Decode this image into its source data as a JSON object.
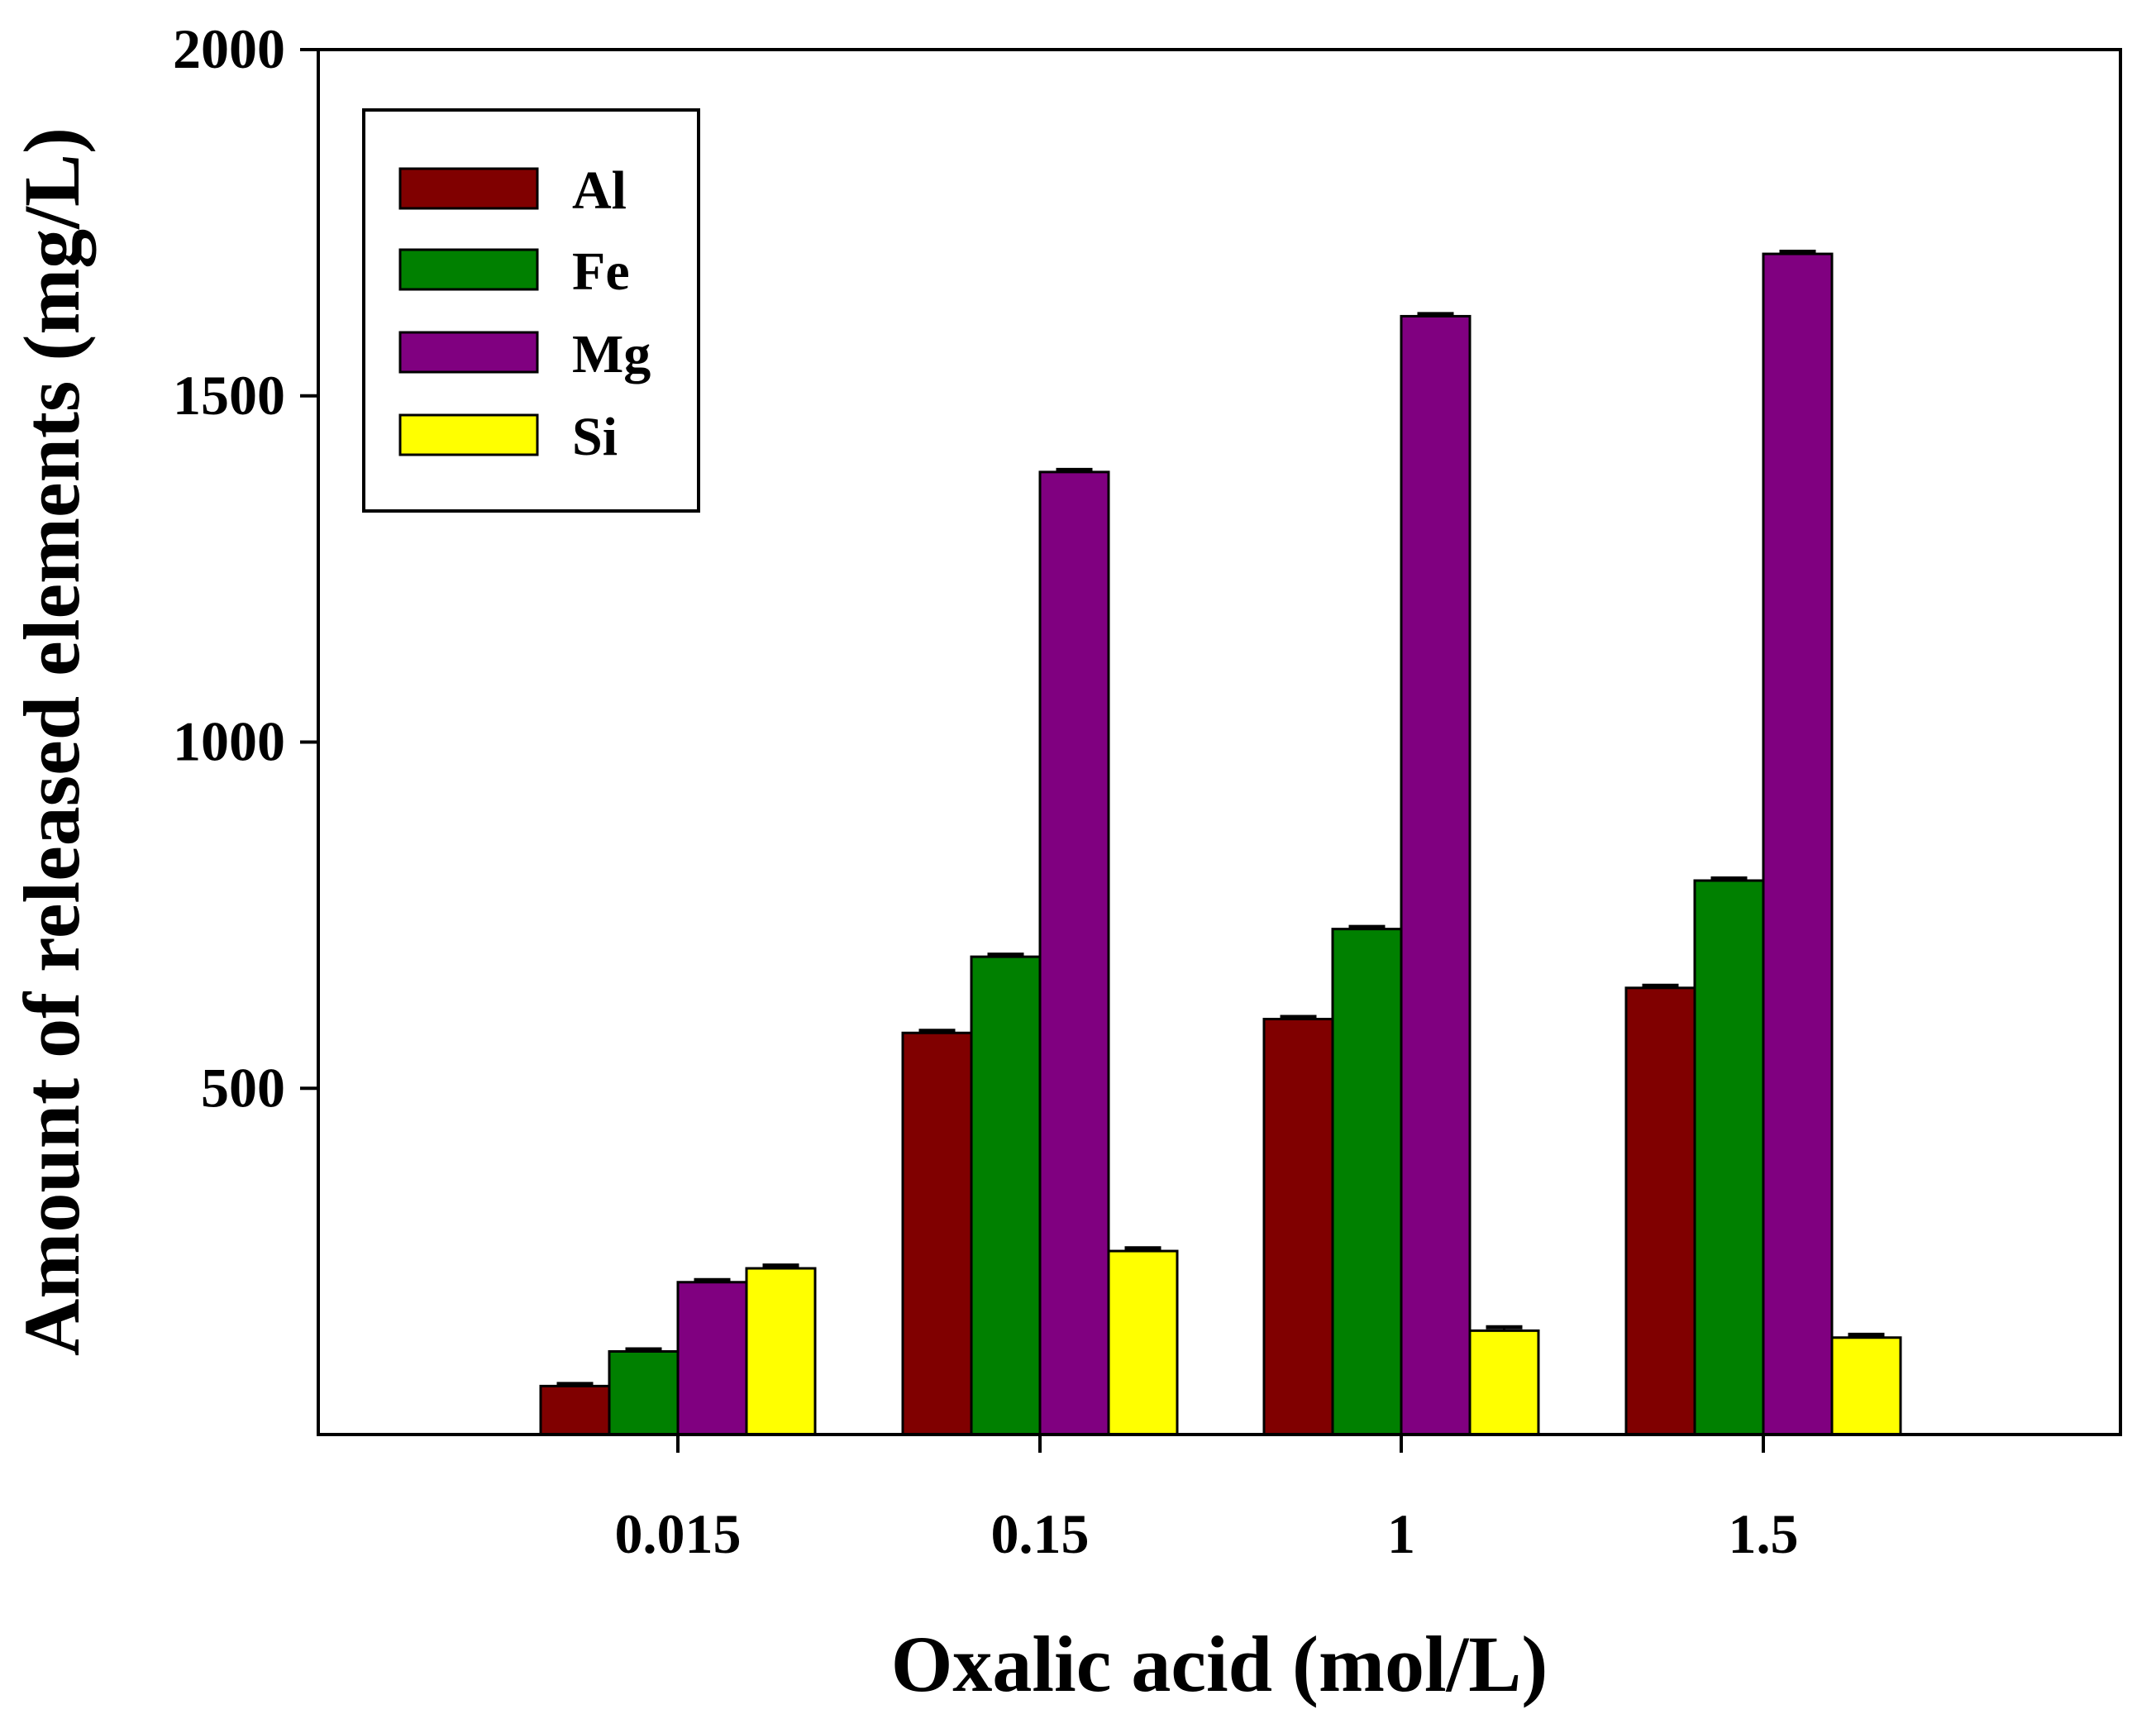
{
  "chart_data": {
    "type": "bar",
    "title": "",
    "xlabel": "Oxalic acid  (mol/L)",
    "ylabel": "Amount of released elements (mg/L)",
    "categories": [
      "0.015",
      "0.15",
      "1",
      "1.5"
    ],
    "ylim": [
      0,
      2000
    ],
    "yticks": [
      500,
      1000,
      1500,
      2000
    ],
    "grid": false,
    "legend_position": "top-left",
    "error_bars": true,
    "series": [
      {
        "name": "Al",
        "color": "#800000",
        "values": [
          70,
          580,
          600,
          645
        ],
        "errors": [
          3,
          3,
          3,
          3
        ]
      },
      {
        "name": "Fe",
        "color": "#008000",
        "values": [
          120,
          690,
          730,
          800
        ],
        "errors": [
          3,
          3,
          3,
          3
        ]
      },
      {
        "name": "Mg",
        "color": "#800080",
        "values": [
          220,
          1390,
          1615,
          1705
        ],
        "errors": [
          3,
          3,
          3,
          3
        ]
      },
      {
        "name": "Si",
        "color": "#ffff00",
        "values": [
          240,
          265,
          150,
          140
        ],
        "errors": [
          4,
          4,
          5,
          4
        ]
      }
    ]
  }
}
